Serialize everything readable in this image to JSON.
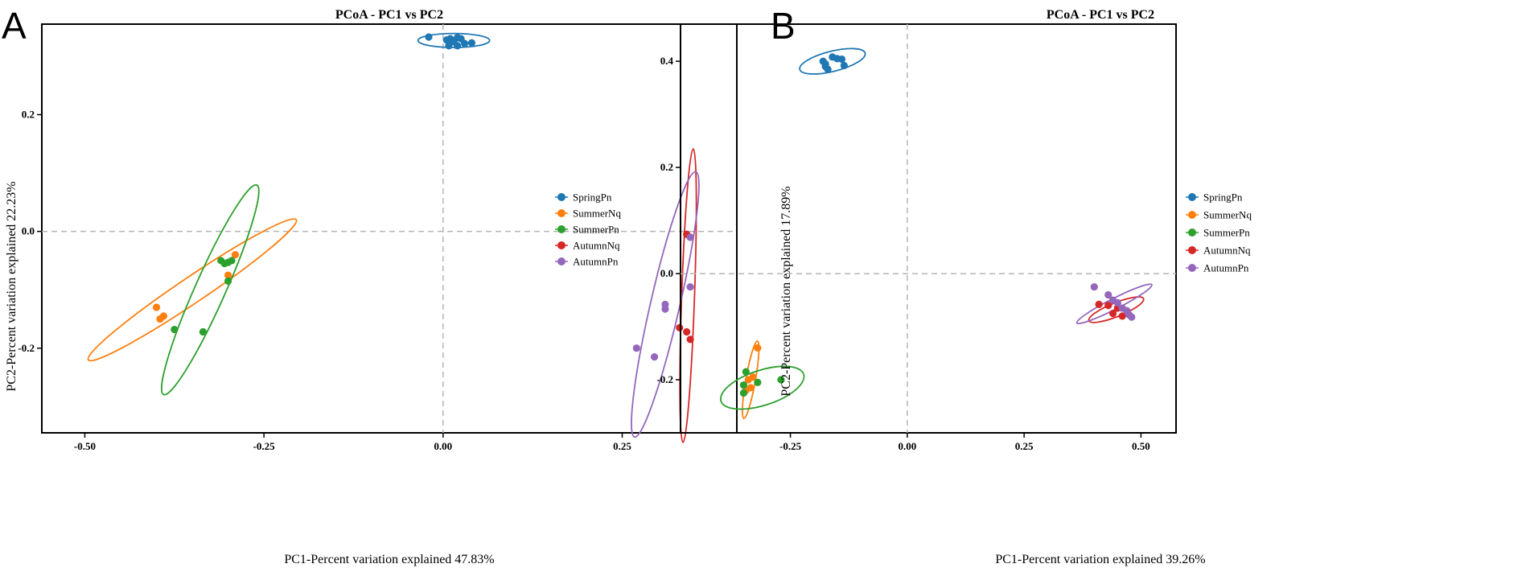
{
  "chart_data": [
    {
      "panel": "A",
      "type": "scatter",
      "title": "PCoA - PC1 vs PC2",
      "xlabel": "PC1-Percent variation explained 47.83%",
      "ylabel": "PC2-Percent variation explained 22.23%",
      "xlim": [
        -0.56,
        0.41
      ],
      "ylim": [
        -0.345,
        0.355
      ],
      "xticks": [
        -0.5,
        -0.25,
        0.0,
        0.25
      ],
      "xtick_labels": [
        "-0.50",
        "-0.25",
        "0.00",
        "0.25"
      ],
      "yticks": [
        -0.2,
        0.0,
        0.2
      ],
      "ytick_labels": [
        "-0.2",
        "0.0",
        "0.2"
      ],
      "ref_lines": {
        "x": 0,
        "y": 0
      },
      "legend_position": "right",
      "series": [
        {
          "name": "SpringPn",
          "color": "#1f77b4",
          "points": [
            [
              -0.02,
              0.333
            ],
            [
              0.005,
              0.328
            ],
            [
              0.01,
              0.33
            ],
            [
              0.015,
              0.325
            ],
            [
              0.02,
              0.332
            ],
            [
              0.025,
              0.33
            ],
            [
              0.03,
              0.322
            ],
            [
              0.04,
              0.323
            ],
            [
              0.02,
              0.318
            ],
            [
              0.008,
              0.318
            ]
          ],
          "ellipse": {
            "cx": 0.015,
            "cy": 0.327,
            "rx": 0.05,
            "ry": 0.012,
            "angle": 0
          }
        },
        {
          "name": "SummerNq",
          "color": "#ff7f0e",
          "points": [
            [
              -0.4,
              -0.13
            ],
            [
              -0.395,
              -0.15
            ],
            [
              -0.39,
              -0.145
            ],
            [
              -0.3,
              -0.075
            ],
            [
              -0.29,
              -0.04
            ]
          ],
          "ellipse": {
            "cx": -0.35,
            "cy": -0.1,
            "rx": 0.175,
            "ry": 0.022,
            "angle": 34
          }
        },
        {
          "name": "SummerPn",
          "color": "#2ca02c",
          "points": [
            [
              -0.31,
              -0.05
            ],
            [
              -0.305,
              -0.055
            ],
            [
              -0.3,
              -0.053
            ],
            [
              -0.295,
              -0.05
            ],
            [
              -0.3,
              -0.085
            ],
            [
              -0.375,
              -0.168
            ],
            [
              -0.335,
              -0.172
            ]
          ],
          "ellipse": {
            "cx": -0.325,
            "cy": -0.1,
            "rx": 0.16,
            "ry": 0.026,
            "angle": 66
          }
        },
        {
          "name": "AutumnNq",
          "color": "#d62728",
          "points": [
            [
              0.34,
              -0.005
            ],
            [
              0.345,
              -0.01
            ],
            [
              0.33,
              -0.165
            ],
            [
              0.34,
              -0.172
            ],
            [
              0.345,
              -0.185
            ]
          ],
          "ellipse": {
            "cx": 0.342,
            "cy": -0.11,
            "rx": 0.205,
            "ry": 0.011,
            "angle": 88
          }
        },
        {
          "name": "AutumnPn",
          "color": "#9467bd",
          "points": [
            [
              0.345,
              -0.01
            ],
            [
              0.345,
              -0.095
            ],
            [
              0.31,
              -0.125
            ],
            [
              0.31,
              -0.133
            ],
            [
              0.27,
              -0.2
            ],
            [
              0.295,
              -0.215
            ]
          ],
          "ellipse": {
            "cx": 0.31,
            "cy": -0.125,
            "rx": 0.19,
            "ry": 0.025,
            "angle": 77
          }
        }
      ]
    },
    {
      "panel": "B",
      "type": "scatter",
      "title": "PCoA - PC1 vs PC2",
      "xlabel": "PC1-Percent variation explained 39.26%",
      "ylabel": "PC2-Percent variation explained 17.89%",
      "xlim": [
        -0.485,
        0.575
      ],
      "ylim": [
        -0.3,
        0.47
      ],
      "xticks": [
        -0.25,
        0.0,
        0.25,
        0.5
      ],
      "xtick_labels": [
        "-0.25",
        "0.00",
        "0.25",
        "0.50"
      ],
      "yticks": [
        -0.2,
        0.0,
        0.2,
        0.4
      ],
      "ytick_labels": [
        "-0.2",
        "0.0",
        "0.2",
        "0.4"
      ],
      "ref_lines": {
        "x": 0,
        "y": 0
      },
      "legend_position": "right",
      "series": [
        {
          "name": "SpringPn",
          "color": "#1f77b4",
          "points": [
            [
              -0.18,
              0.4
            ],
            [
              -0.175,
              0.39
            ],
            [
              -0.17,
              0.385
            ],
            [
              -0.16,
              0.408
            ],
            [
              -0.15,
              0.405
            ],
            [
              -0.14,
              0.404
            ],
            [
              -0.135,
              0.392
            ],
            [
              -0.175,
              0.395
            ]
          ],
          "ellipse": {
            "cx": -0.16,
            "cy": 0.4,
            "rx": 0.072,
            "ry": 0.019,
            "angle": 14
          }
        },
        {
          "name": "SummerNq",
          "color": "#ff7f0e",
          "points": [
            [
              -0.34,
              -0.2
            ],
            [
              -0.33,
              -0.195
            ],
            [
              -0.335,
              -0.215
            ],
            [
              -0.32,
              -0.14
            ],
            [
              -0.345,
              -0.22
            ]
          ],
          "ellipse": {
            "cx": -0.335,
            "cy": -0.2,
            "rx": 0.084,
            "ry": 0.009,
            "angle": 80
          }
        },
        {
          "name": "SummerPn",
          "color": "#2ca02c",
          "points": [
            [
              -0.35,
              -0.21
            ],
            [
              -0.35,
              -0.225
            ],
            [
              -0.345,
              -0.185
            ],
            [
              -0.32,
              -0.205
            ],
            [
              -0.27,
              -0.2
            ]
          ],
          "ellipse": {
            "cx": -0.31,
            "cy": -0.215,
            "rx": 0.093,
            "ry": 0.033,
            "angle": 18
          }
        },
        {
          "name": "AutumnNq",
          "color": "#d62728",
          "points": [
            [
              0.41,
              -0.058
            ],
            [
              0.43,
              -0.06
            ],
            [
              0.44,
              -0.075
            ],
            [
              0.46,
              -0.08
            ],
            [
              0.45,
              -0.065
            ]
          ],
          "ellipse": {
            "cx": 0.447,
            "cy": -0.068,
            "rx": 0.063,
            "ry": 0.013,
            "angle": 22
          }
        },
        {
          "name": "AutumnPn",
          "color": "#9467bd",
          "points": [
            [
              0.4,
              -0.025
            ],
            [
              0.43,
              -0.04
            ],
            [
              0.45,
              -0.055
            ],
            [
              0.46,
              -0.065
            ],
            [
              0.47,
              -0.07
            ],
            [
              0.475,
              -0.078
            ],
            [
              0.48,
              -0.082
            ],
            [
              0.44,
              -0.05
            ]
          ],
          "ellipse": {
            "cx": 0.443,
            "cy": -0.057,
            "rx": 0.09,
            "ry": 0.01,
            "angle": 27
          }
        }
      ]
    }
  ],
  "panels": [
    {
      "letter": "A"
    },
    {
      "letter": "B"
    }
  ]
}
